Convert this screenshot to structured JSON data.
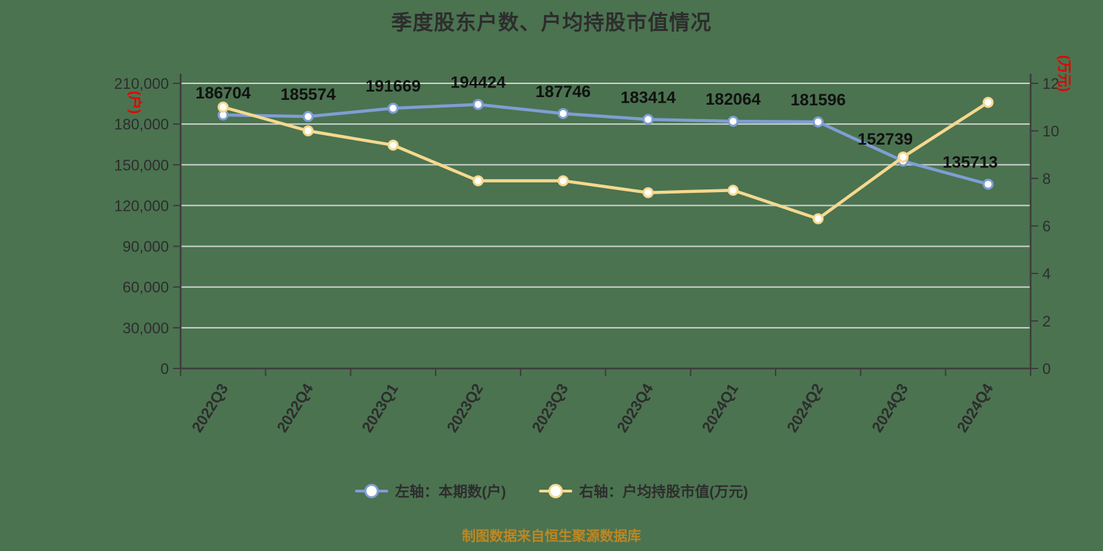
{
  "colors": {
    "background": "#4b7350",
    "grid": "#ccd2cb",
    "axis": "#3d3d3d",
    "text": "#2d2d2d",
    "data_label": "#111111",
    "unit_label": "#e60000",
    "caption": "#bd8723"
  },
  "chart_data": {
    "type": "line",
    "title": "季度股东户数、户均持股市值情况",
    "caption": "制图数据来自恒生聚源数据库",
    "categories": [
      "2022Q3",
      "2022Q4",
      "2023Q1",
      "2023Q2",
      "2023Q3",
      "2023Q4",
      "2024Q1",
      "2024Q2",
      "2024Q3",
      "2024Q4"
    ],
    "series": [
      {
        "name": "左轴：本期数(户)",
        "yaxis": "left",
        "color": "#7f9ed3",
        "values": [
          186704,
          185574,
          191669,
          194424,
          187746,
          183414,
          182064,
          181596,
          152739,
          135713
        ],
        "show_labels": true
      },
      {
        "name": "右轴：户均持股市值(万元)",
        "yaxis": "right",
        "color": "#f5d98f",
        "values": [
          11.0,
          10.0,
          9.4,
          7.9,
          7.9,
          7.4,
          7.5,
          6.3,
          8.9,
          11.2
        ],
        "show_labels": false
      }
    ],
    "left_axis": {
      "unit": "(户)",
      "min": 0,
      "max": 210000,
      "tick_step": 30000,
      "tick_labels": [
        "210,000",
        "180,000",
        "150,000",
        "120,000",
        "90,000",
        "60,000",
        "30,000",
        "0"
      ]
    },
    "right_axis": {
      "unit": "(万元)",
      "min": 0,
      "max": 12,
      "tick_step": 2,
      "tick_labels": [
        "12",
        "10",
        "8",
        "6",
        "4",
        "2",
        "0"
      ]
    },
    "grid": true,
    "legend_position": "bottom"
  }
}
